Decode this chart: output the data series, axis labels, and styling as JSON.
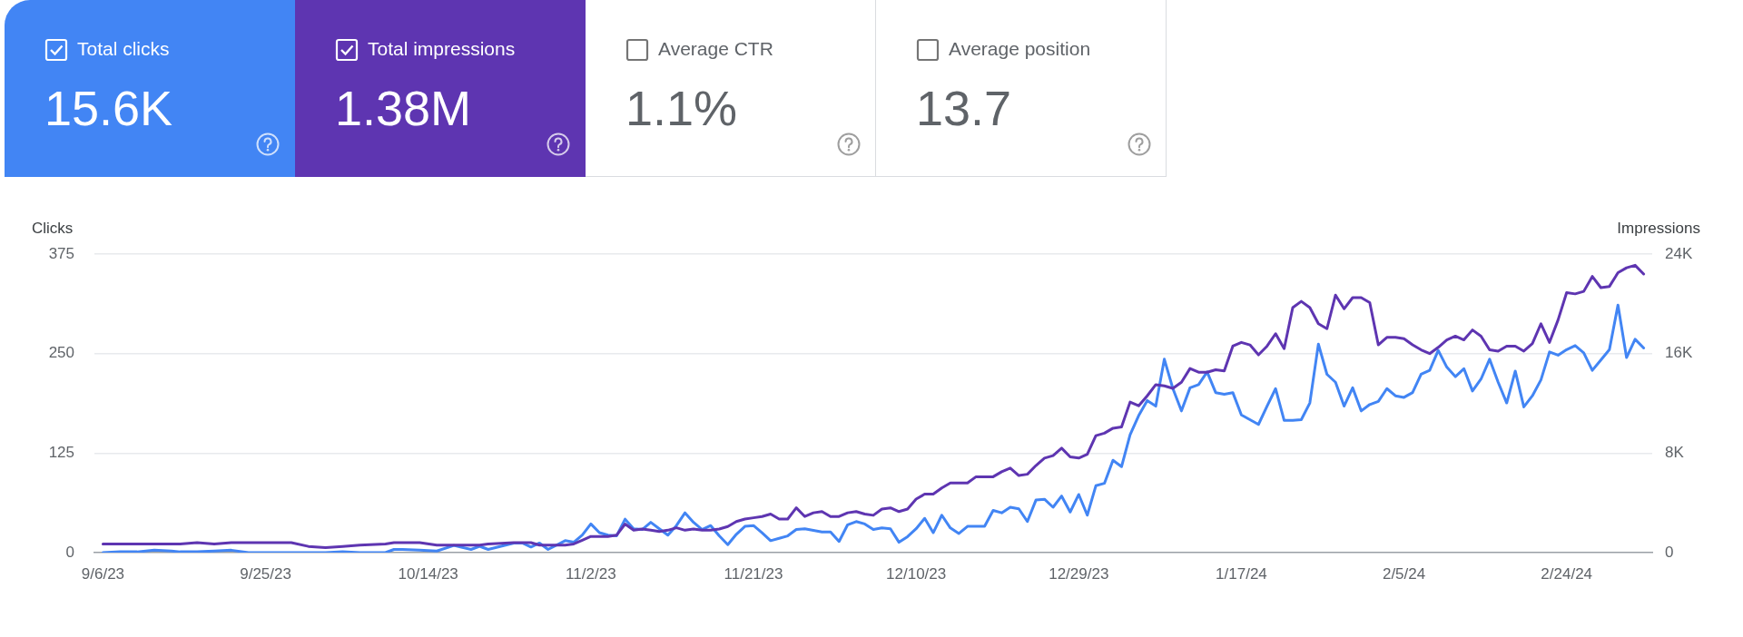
{
  "chart_data": [
    {
      "type": "other",
      "annotations": [
        "Total clicks",
        "15.6K",
        "Total impressions",
        "1.38M",
        "Average CTR",
        "1.1%",
        "Average position",
        "13.7"
      ]
    },
    {
      "type": "line",
      "ylabel": "Clicks",
      "y2label": "Impressions",
      "grid": "y",
      "legend": false,
      "x": [
        "2023-09-06",
        "2023-09-08",
        "2023-09-10",
        "2023-09-12",
        "2023-09-14",
        "2023-09-15",
        "2023-09-17",
        "2023-09-19",
        "2023-09-21",
        "2023-09-23",
        "2023-09-26",
        "2023-09-28",
        "2023-09-30",
        "2023-10-02",
        "2023-10-04",
        "2023-10-06",
        "2023-10-09",
        "2023-10-10",
        "2023-10-11",
        "2023-10-13",
        "2023-10-15",
        "2023-10-17",
        "2023-10-19",
        "2023-10-20",
        "2023-10-21",
        "2023-10-24",
        "2023-10-25",
        "2023-10-26",
        "2023-10-27",
        "2023-10-28",
        "2023-10-30",
        "2023-10-31",
        "2023-11-01",
        "2023-11-02",
        "2023-11-03",
        "2023-11-04",
        "2023-11-05",
        "2023-11-06",
        "2023-11-07",
        "2023-11-08",
        "2023-11-09",
        "2023-11-10",
        "2023-11-11",
        "2023-11-12",
        "2023-11-13",
        "2023-11-14",
        "2023-11-15",
        "2023-11-16",
        "2023-11-17",
        "2023-11-18",
        "2023-11-19",
        "2023-11-20",
        "2023-11-21",
        "2023-11-22",
        "2023-11-23",
        "2023-11-24",
        "2023-11-25",
        "2023-11-26",
        "2023-11-27",
        "2023-11-28",
        "2023-11-29",
        "2023-11-30",
        "2023-12-01",
        "2023-12-02",
        "2023-12-03",
        "2023-12-04",
        "2023-12-05",
        "2023-12-06",
        "2023-12-07",
        "2023-12-08",
        "2023-12-09",
        "2023-12-10",
        "2023-12-11",
        "2023-12-12",
        "2023-12-13",
        "2023-12-14",
        "2023-12-15",
        "2023-12-16",
        "2023-12-17",
        "2023-12-18",
        "2023-12-19",
        "2023-12-20",
        "2023-12-21",
        "2023-12-22",
        "2023-12-23",
        "2023-12-24",
        "2023-12-25",
        "2023-12-26",
        "2023-12-27",
        "2023-12-28",
        "2023-12-29",
        "2023-12-30",
        "2023-12-31",
        "2024-01-01",
        "2024-01-02",
        "2024-01-03",
        "2024-01-04",
        "2024-01-05",
        "2024-01-06",
        "2024-01-07",
        "2024-01-08",
        "2024-01-09",
        "2024-01-10",
        "2024-01-11",
        "2024-01-12",
        "2024-01-13",
        "2024-01-14",
        "2024-01-15",
        "2024-01-16",
        "2024-01-17",
        "2024-01-18",
        "2024-01-19",
        "2024-01-20",
        "2024-01-21",
        "2024-01-22",
        "2024-01-23",
        "2024-01-24",
        "2024-01-25",
        "2024-01-26",
        "2024-01-27",
        "2024-01-28",
        "2024-01-29",
        "2024-01-30",
        "2024-01-31",
        "2024-02-01",
        "2024-02-02",
        "2024-02-03",
        "2024-02-04",
        "2024-02-05",
        "2024-02-06",
        "2024-02-07",
        "2024-02-08",
        "2024-02-09",
        "2024-02-10",
        "2024-02-11",
        "2024-02-12",
        "2024-02-13",
        "2024-02-14",
        "2024-02-15",
        "2024-02-16",
        "2024-02-17",
        "2024-02-18",
        "2024-02-19",
        "2024-02-20",
        "2024-02-21",
        "2024-02-22",
        "2024-02-23",
        "2024-02-24",
        "2024-02-25",
        "2024-02-26",
        "2024-02-27",
        "2024-02-28",
        "2024-02-29",
        "2024-03-01",
        "2024-03-02",
        "2024-03-03",
        "2024-03-04"
      ],
      "xlim": [
        "2023-09-05",
        "2024-03-05"
      ],
      "xticks": [
        {
          "value": "2023-09-06",
          "label": "9/6/23"
        },
        {
          "value": "2023-09-25",
          "label": "9/25/23"
        },
        {
          "value": "2023-10-14",
          "label": "10/14/23"
        },
        {
          "value": "2023-11-02",
          "label": "11/2/23"
        },
        {
          "value": "2023-11-21",
          "label": "11/21/23"
        },
        {
          "value": "2023-12-10",
          "label": "12/10/23"
        },
        {
          "value": "2023-12-29",
          "label": "12/29/23"
        },
        {
          "value": "2024-01-17",
          "label": "1/17/24"
        },
        {
          "value": "2024-02-05",
          "label": "2/5/24"
        },
        {
          "value": "2024-02-24",
          "label": "2/24/24"
        }
      ],
      "ylim": [
        0,
        375
      ],
      "yticks": [
        0,
        125,
        250,
        375
      ],
      "y2lim": [
        0,
        24000
      ],
      "y2ticks": [
        0,
        {
          "value": 8000,
          "label": "8K"
        },
        {
          "value": 16000,
          "label": "16K"
        },
        {
          "value": 24000,
          "label": "24K"
        }
      ],
      "series": [
        {
          "color": "#5e35b1",
          "axis": "y2",
          "values": [
            700,
            700,
            700,
            700,
            700,
            700,
            800,
            700,
            800,
            800,
            800,
            800,
            500,
            400,
            500,
            600,
            700,
            800,
            800,
            800,
            600,
            600,
            600,
            600,
            700,
            800,
            800,
            800,
            600,
            600,
            600,
            700,
            1000,
            1300,
            1300,
            1300,
            1400,
            2300,
            1800,
            1900,
            1800,
            1700,
            1800,
            2000,
            1800,
            1900,
            1800,
            1800,
            1900,
            2100,
            2500,
            2700,
            2800,
            2900,
            3100,
            2700,
            2700,
            3600,
            2900,
            3200,
            3300,
            2900,
            2900,
            3200,
            3300,
            3100,
            3000,
            3500,
            3600,
            3300,
            3500,
            4300,
            4700,
            4700,
            5200,
            5600,
            5600,
            5600,
            6100,
            6100,
            6100,
            6500,
            6800,
            6200,
            6300,
            7000,
            7600,
            7800,
            8400,
            7700,
            7600,
            7900,
            9400,
            9600,
            10000,
            10100,
            12100,
            11800,
            12600,
            13500,
            13400,
            13200,
            13700,
            14800,
            14500,
            14500,
            14700,
            14600,
            16600,
            16900,
            16700,
            15900,
            16600,
            17600,
            16400,
            19700,
            20200,
            19700,
            18400,
            18000,
            20700,
            19600,
            20500,
            20500,
            20100,
            16700,
            17300,
            17300,
            17200,
            16700,
            16300,
            16000,
            16500,
            17100,
            17400,
            17100,
            17900,
            17400,
            16300,
            16200,
            16600,
            16600,
            16200,
            16800,
            18400,
            16900,
            18700,
            20900,
            20800,
            21000,
            22200,
            21300,
            21400,
            22500,
            22900,
            23100,
            22400
          ]
        },
        {
          "color": "#4285f4",
          "values": [
            0,
            1,
            1,
            3,
            2,
            1,
            1,
            2,
            3,
            0,
            0,
            0,
            0,
            0,
            1,
            0,
            0,
            4,
            4,
            3,
            2,
            9,
            4,
            8,
            4,
            12,
            12,
            7,
            12,
            4,
            15,
            13,
            22,
            36,
            25,
            22,
            21,
            42,
            30,
            29,
            38,
            30,
            22,
            34,
            50,
            38,
            29,
            34,
            21,
            10,
            23,
            33,
            34,
            25,
            15,
            18,
            21,
            29,
            30,
            28,
            26,
            26,
            14,
            35,
            39,
            36,
            29,
            31,
            30,
            13,
            20,
            30,
            43,
            25,
            47,
            31,
            24,
            33,
            33,
            33,
            53,
            50,
            57,
            55,
            39,
            66,
            67,
            57,
            71,
            51,
            73,
            47,
            84,
            87,
            116,
            108,
            148,
            172,
            191,
            184,
            243,
            206,
            178,
            207,
            211,
            227,
            201,
            199,
            201,
            173,
            167,
            161,
            184,
            206,
            166,
            166,
            167,
            188,
            262,
            224,
            214,
            184,
            207,
            178,
            186,
            190,
            206,
            197,
            195,
            201,
            224,
            229,
            254,
            233,
            221,
            231,
            203,
            218,
            243,
            214,
            188,
            228,
            183,
            197,
            217,
            252,
            248,
            255,
            260,
            251,
            229,
            242,
            255,
            311,
            245,
            268,
            257
          ]
        }
      ]
    }
  ]
}
